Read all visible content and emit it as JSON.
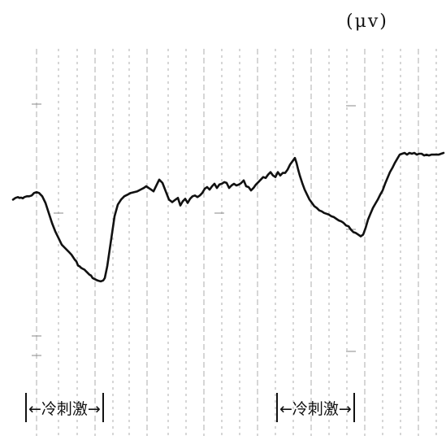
{
  "unit_label": "(μv)",
  "stimulus_label": "←冷刺激→",
  "chart_data": {
    "type": "line",
    "title": "",
    "xlabel": "",
    "ylabel": "(μv)",
    "grid": true,
    "series": [
      {
        "name": "",
        "x": [
          0,
          3,
          6,
          8,
          10,
          12,
          14,
          17,
          20,
          23,
          26,
          29,
          32,
          36,
          40,
          44,
          48,
          52,
          56,
          60,
          64,
          68,
          72,
          76,
          78,
          80,
          82,
          84,
          86,
          88,
          90,
          92,
          94,
          96,
          98,
          100,
          102,
          104,
          106,
          108,
          111,
          113,
          116,
          119,
          122,
          125,
          129,
          133,
          137,
          141,
          145,
          149,
          153,
          157,
          161,
          164,
          167,
          170,
          173,
          176,
          180,
          184,
          188,
          192,
          196,
          200,
          203,
          206,
          209,
          212,
          215,
          218,
          221,
          224,
          227,
          230,
          233,
          236,
          239,
          242,
          245,
          248,
          251,
          254,
          257,
          260,
          263,
          266,
          269,
          272,
          275,
          278,
          281,
          284,
          287,
          290,
          293,
          296,
          299,
          302,
          305,
          308,
          311,
          314,
          317,
          320,
          323,
          326,
          329,
          332,
          335,
          338,
          341,
          344,
          347,
          349,
          351,
          353,
          356,
          359,
          362,
          365,
          368,
          371,
          374,
          377,
          380,
          383,
          386,
          389,
          392,
          395,
          398,
          401,
          404,
          407,
          410,
          413,
          416,
          419,
          422,
          425,
          428,
          431,
          434,
          437,
          440,
          443,
          446,
          449,
          452,
          455,
          458,
          461,
          464,
          467,
          470,
          473,
          476,
          479,
          482,
          485,
          488,
          491,
          494,
          497,
          500,
          503,
          506,
          509,
          512,
          515,
          518,
          521,
          524,
          527,
          530
        ],
        "y": [
          12.0,
          13.0,
          13.5,
          13.0,
          13.2,
          12.8,
          13.5,
          14.0,
          14.0,
          14.5,
          16.0,
          16.5,
          16.0,
          14.0,
          10.0,
          4.0,
          -2.0,
          -7.0,
          -11.0,
          -15.0,
          -17.0,
          -19.0,
          -21.0,
          -24.0,
          -25.0,
          -27.5,
          -28.0,
          -29.0,
          -29.5,
          -30.0,
          -31.0,
          -32.0,
          -33.0,
          -33.5,
          -35.0,
          -35.5,
          -36.0,
          -36.5,
          -36.8,
          -37.0,
          -36.5,
          -35.0,
          -28.0,
          -18.0,
          -8.0,
          2.0,
          9.0,
          12.0,
          14.0,
          15.0,
          16.0,
          16.5,
          17.0,
          18.0,
          19.0,
          20.0,
          19.0,
          18.0,
          17.0,
          20.0,
          24.0,
          22.0,
          17.0,
          12.0,
          10.5,
          12.0,
          13.0,
          8.5,
          11.0,
          12.5,
          10.0,
          12.5,
          14.0,
          14.5,
          13.5,
          14.5,
          16.0,
          18.5,
          19.5,
          18.0,
          20.0,
          21.5,
          19.0,
          21.0,
          21.5,
          22.5,
          22.0,
          19.0,
          20.5,
          21.5,
          20.5,
          21.0,
          22.0,
          23.5,
          20.0,
          19.5,
          17.5,
          19.0,
          21.0,
          22.5,
          24.0,
          25.5,
          25.0,
          27.0,
          28.5,
          26.5,
          25.5,
          28.5,
          26.5,
          28.0,
          28.0,
          30.0,
          33.0,
          35.0,
          37.0,
          34.0,
          30.0,
          26.5,
          22.0,
          18.0,
          15.0,
          12.0,
          10.0,
          8.0,
          7.0,
          5.5,
          5.0,
          4.0,
          3.5,
          3.0,
          2.0,
          1.5,
          0.5,
          -0.5,
          -1.0,
          -2.0,
          -3.5,
          -4.0,
          -6.0,
          -7.5,
          -8.0,
          -9.0,
          -10.0,
          -9.0,
          -5.0,
          0.0,
          3.5,
          7.0,
          9.5,
          12.0,
          15.0,
          17.5,
          21.5,
          25.0,
          28.5,
          31.0,
          34.0,
          36.5,
          39.0,
          39.5,
          40.0,
          39.0,
          40.0,
          39.5,
          40.0,
          39.0,
          39.5,
          39.5,
          38.5,
          39.0,
          38.5,
          39.0,
          39.0,
          39.0,
          39.0,
          39.5,
          40.0
        ],
        "color": "#111111"
      }
    ],
    "xlim": [
      0,
      530
    ],
    "ylim": [
      -80,
      80
    ],
    "annotations": [
      {
        "text": "←冷刺激→",
        "x_start": 20,
        "x_end": 170
      },
      {
        "text": "←冷刺激→",
        "x_start": 327,
        "x_end": 480
      }
    ]
  }
}
